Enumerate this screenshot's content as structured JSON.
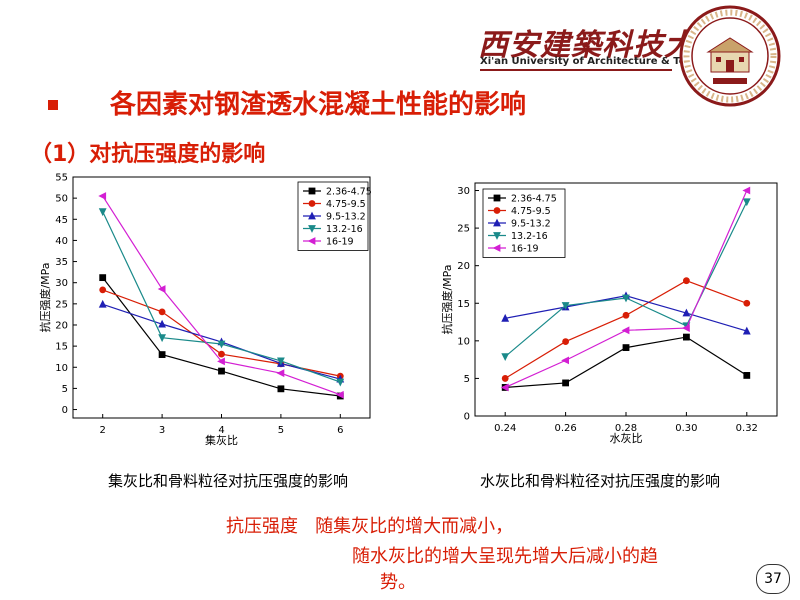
{
  "header": {
    "university_cn": "西安建築科技大學",
    "university_en": "Xi'an University of Architecture & Technology"
  },
  "slide": {
    "title": "各因素对钢渣透水混凝土性能的影响",
    "subtitle": "（1）对抗压强度的影响",
    "caption_left": "集灰比和骨料粒径对抗压强度的影响",
    "caption_right": "水灰比和骨料粒径对抗压强度的影响",
    "conclusion_line1": "抗压强度   随集灰比的增大而减小，",
    "conclusion_line2": "随水灰比的增大呈现先增大后减小的趋",
    "conclusion_line3": "势。",
    "page_number": "37"
  },
  "colors": {
    "accent": "#d81e06",
    "logo": "#8b1a1a"
  },
  "chart_data": [
    {
      "type": "line",
      "xlabel": "集灰比",
      "ylabel": "抗压强度/MPa",
      "x": [
        2,
        3,
        4,
        5,
        6
      ],
      "xlim": [
        1.5,
        6.5
      ],
      "ylim": [
        -2,
        55
      ],
      "yticks": [
        0,
        5,
        10,
        15,
        20,
        25,
        30,
        35,
        40,
        45,
        50,
        55
      ],
      "xticks": [
        "2",
        "3",
        "4",
        "5",
        "6"
      ],
      "grid": false,
      "legend_position": "top-right",
      "series": [
        {
          "name": "2.36-4.75",
          "color": "#000000",
          "marker": "square",
          "values": [
            31.2,
            13.0,
            9.1,
            4.9,
            3.2
          ]
        },
        {
          "name": "4.75-9.5",
          "color": "#d81e06",
          "marker": "circle",
          "values": [
            28.3,
            23.1,
            13.1,
            10.8,
            7.9
          ]
        },
        {
          "name": "9.5-13.2",
          "color": "#1f1fb4",
          "marker": "triangle-up",
          "values": [
            24.9,
            20.2,
            16.0,
            10.9,
            7.2
          ]
        },
        {
          "name": "13.2-16",
          "color": "#1a8a8a",
          "marker": "triangle-down",
          "values": [
            46.8,
            17.0,
            15.5,
            11.5,
            6.5
          ]
        },
        {
          "name": "16-19",
          "color": "#d31fd3",
          "marker": "triangle-left",
          "values": [
            50.5,
            28.5,
            11.4,
            8.6,
            3.5
          ]
        }
      ]
    },
    {
      "type": "line",
      "xlabel": "水灰比",
      "ylabel": "抗压强度/MPa",
      "x": [
        0.24,
        0.26,
        0.28,
        0.3,
        0.32
      ],
      "xlim": [
        0.23,
        0.33
      ],
      "ylim": [
        0,
        31
      ],
      "yticks": [
        0,
        5,
        10,
        15,
        20,
        25,
        30
      ],
      "xticks": [
        "0.24",
        "0.26",
        "0.28",
        "0.30",
        "0.32"
      ],
      "grid": false,
      "legend_position": "top-left",
      "series": [
        {
          "name": "2.36-4.75",
          "color": "#000000",
          "marker": "square",
          "values": [
            3.8,
            4.4,
            9.1,
            10.5,
            5.4
          ]
        },
        {
          "name": "4.75-9.5",
          "color": "#d81e06",
          "marker": "circle",
          "values": [
            5.0,
            9.9,
            13.4,
            18.0,
            15.0
          ]
        },
        {
          "name": "9.5-13.2",
          "color": "#1f1fb4",
          "marker": "triangle-up",
          "values": [
            13.0,
            14.5,
            16.0,
            13.7,
            11.3
          ]
        },
        {
          "name": "13.2-16",
          "color": "#1a8a8a",
          "marker": "triangle-down",
          "values": [
            7.9,
            14.7,
            15.7,
            12.0,
            28.5
          ]
        },
        {
          "name": "16-19",
          "color": "#d31fd3",
          "marker": "triangle-left",
          "values": [
            3.8,
            7.4,
            11.4,
            11.7,
            30.0
          ]
        }
      ]
    }
  ]
}
